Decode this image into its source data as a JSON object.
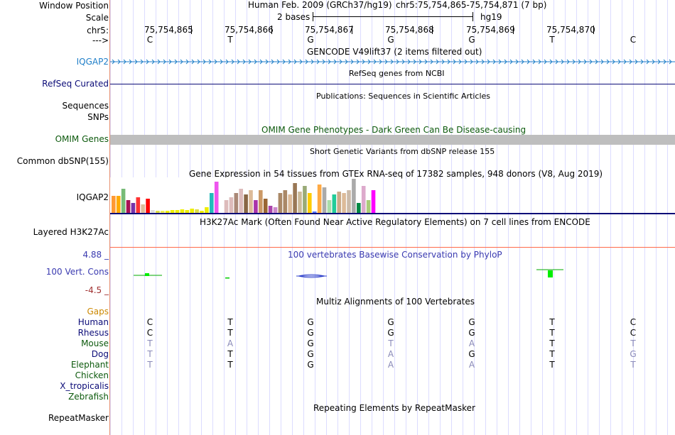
{
  "header": {
    "window_position_label": "Window Position",
    "scale_label": "Scale",
    "chrom_label": "chr5:",
    "strand_label": "--->",
    "assembly": "Human Feb. 2009 (GRCh37/hg19)",
    "position": "chr5:75,754,865-75,754,871 (7 bp)",
    "scale_text": "2 bases",
    "scale_db": "hg19",
    "ruler_positions": [
      "75,754,865",
      "75,754,866",
      "75,754,867",
      "75,754,868",
      "75,754,869",
      "75,754,870"
    ],
    "bases": [
      "C",
      "T",
      "G",
      "G",
      "G",
      "T",
      "C"
    ]
  },
  "tracks": {
    "gencode": {
      "title": "GENCODE V49lift37 (2 items filtered out)",
      "label": "IQGAP2",
      "color": "#1e7ec8"
    },
    "refseq": {
      "title": "RefSeq genes from NCBI",
      "label": "RefSeq Curated",
      "color": "#0c0c78"
    },
    "publications": {
      "title": "Publications: Sequences in Scientific Articles"
    },
    "sequences": {
      "label": "Sequences"
    },
    "snps": {
      "label": "SNPs"
    },
    "omim": {
      "title": "OMIM Gene Phenotypes - Dark Green Can Be Disease-causing",
      "label": "OMIM Genes",
      "color": "#0d5a0d"
    },
    "dbsnp": {
      "title": "Short Genetic Variants from dbSNP release 155",
      "label": "Common dbSNP(155)"
    },
    "gtex": {
      "title": "Gene Expression in 54 tissues from GTEx RNA-seq of 17382 samples, 948 donors (V8, Aug 2019)",
      "label": "IQGAP2"
    },
    "h3k27ac": {
      "title": "H3K27Ac Mark (Often Found Near Active Regulatory Elements) on 7 cell lines from ENCODE",
      "label": "Layered H3K27Ac"
    },
    "phylop": {
      "title": "100 vertebrates Basewise Conservation by PhyloP",
      "label": "100 Vert. Cons",
      "max_label": "4.88 _",
      "min_label": "-4.5 _",
      "title_color": "#3a3ab0",
      "max": 4.88,
      "min": -4.5
    },
    "multiz": {
      "title": "Multiz Alignments of 100 Vertebrates",
      "gaps_label": "Gaps",
      "species": [
        {
          "name": "Human",
          "color": "#0c0c78",
          "bases": [
            "C",
            "T",
            "G",
            "G",
            "G",
            "T",
            "C"
          ],
          "faded": [
            false,
            false,
            false,
            false,
            false,
            false,
            false
          ]
        },
        {
          "name": "Rhesus",
          "color": "#0c0c78",
          "bases": [
            "C",
            "T",
            "G",
            "G",
            "G",
            "T",
            "C"
          ],
          "faded": [
            false,
            false,
            false,
            false,
            false,
            false,
            false
          ]
        },
        {
          "name": "Mouse",
          "color": "#0d5a0d",
          "bases": [
            "T",
            "A",
            "G",
            "T",
            "A",
            "T",
            "T"
          ],
          "faded": [
            true,
            true,
            false,
            true,
            true,
            false,
            true
          ]
        },
        {
          "name": "Dog",
          "color": "#0c0c78",
          "bases": [
            "T",
            "T",
            "G",
            "A",
            "G",
            "T",
            "G"
          ],
          "faded": [
            true,
            false,
            false,
            true,
            false,
            false,
            true
          ]
        },
        {
          "name": "Elephant",
          "color": "#0d5a0d",
          "bases": [
            "T",
            "T",
            "G",
            "A",
            "A",
            "T",
            "T"
          ],
          "faded": [
            true,
            false,
            false,
            true,
            true,
            false,
            true
          ]
        },
        {
          "name": "Chicken",
          "color": "#0d5a0d",
          "bases": [],
          "faded": []
        },
        {
          "name": "X_tropicalis",
          "color": "#0c0c78",
          "bases": [],
          "faded": []
        },
        {
          "name": "Zebrafish",
          "color": "#0d5a0d",
          "bases": [],
          "faded": []
        }
      ]
    },
    "repeatmasker": {
      "title": "Repeating Elements by RepeatMasker",
      "label": "RepeatMasker"
    }
  },
  "chart_data": {
    "type": "bar",
    "title": "Gene Expression in 54 tissues from GTEx RNA-seq of 17382 samples, 948 donors (V8, Aug 2019)",
    "xlabel": "",
    "ylabel": "",
    "ylim": [
      0,
      48
    ],
    "values": [
      24,
      24,
      34,
      18,
      14,
      22,
      12,
      20,
      4,
      3,
      3,
      3,
      4,
      4,
      5,
      4,
      6,
      5,
      3,
      8,
      28,
      44,
      3,
      18,
      22,
      28,
      34,
      26,
      32,
      18,
      32,
      20,
      10,
      8,
      28,
      32,
      26,
      42,
      30,
      38,
      28,
      2,
      40,
      36,
      18,
      26,
      30,
      28,
      32,
      48,
      14,
      38,
      18,
      32
    ],
    "colors": [
      "#ff9933",
      "#ffaa00",
      "#77bb77",
      "#aa1155",
      "#7733aa",
      "#ff3333",
      "#ddbb99",
      "#ff0000",
      "#dddddd",
      "#dddd44",
      "#eeee55",
      "#eeee00",
      "#eeee00",
      "#eeee00",
      "#eeee00",
      "#eeee00",
      "#eeee00",
      "#dddd44",
      "#eeee00",
      "#eeee00",
      "#22bbbb",
      "#ee55ee",
      "#ffffff",
      "#ddbbbb",
      "#ddbbbb",
      "#aa8877",
      "#ddbbbb",
      "#886644",
      "#ddbb99",
      "#aa33aa",
      "#cc9966",
      "#996633",
      "#aa44aa",
      "#cc88cc",
      "#aa8866",
      "#aa8866",
      "#ddbb99",
      "#997755",
      "#ccbb99",
      "#99aa77",
      "#ffcc00",
      "#5577ff",
      "#ffaa44",
      "#aaaaaa",
      "#aaddaa",
      "#22cc99",
      "#ccaa88",
      "#ddbb99",
      "#ccbbaa",
      "#aaaaaa",
      "#008844",
      "#ddaacc",
      "#aacc77",
      "#ff00ff"
    ]
  }
}
